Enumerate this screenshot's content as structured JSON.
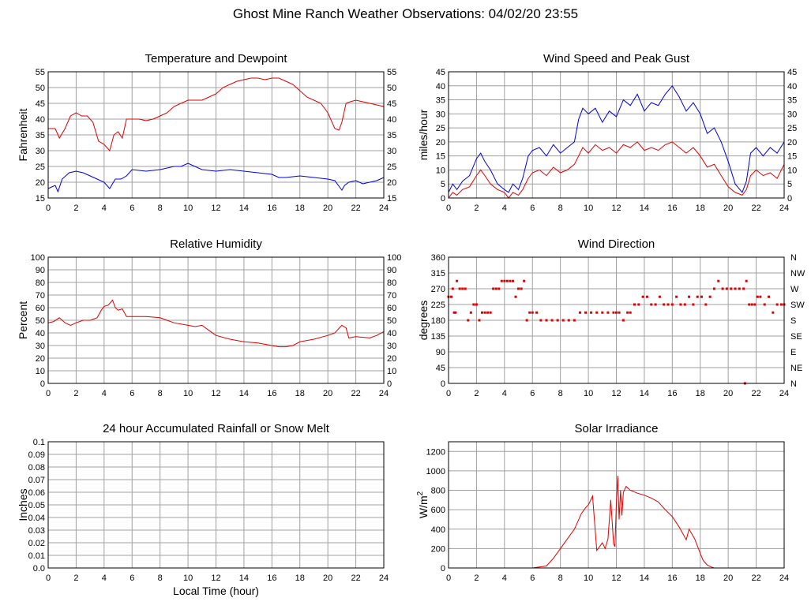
{
  "page": {
    "title": "Ghost Mine Ranch Weather Observations: 04/02/20 23:55"
  },
  "colors": {
    "red": "#e00000",
    "blue": "#0000e0",
    "grid": "#a0a0a0"
  },
  "chart_data": [
    {
      "id": "temp",
      "type": "line",
      "title": "Temperature and Dewpoint",
      "ylabel": "Fahrenheit",
      "xlabel": "",
      "xlim": [
        0,
        24
      ],
      "ylim": [
        15,
        55
      ],
      "yticks": [
        15,
        20,
        25,
        30,
        35,
        40,
        45,
        50,
        55
      ],
      "right_ticks": true,
      "series": [
        {
          "color": "#e00000",
          "x": [
            0,
            0.5,
            0.8,
            1.2,
            1.6,
            2.0,
            2.4,
            2.8,
            3.2,
            3.6,
            4.0,
            4.4,
            4.7,
            5.0,
            5.3,
            5.6,
            6.0,
            6.5,
            7.0,
            7.5,
            8.0,
            8.5,
            9.0,
            9.5,
            10.0,
            10.5,
            11.0,
            11.5,
            12.0,
            12.5,
            13.0,
            13.5,
            14.0,
            14.5,
            15.0,
            15.5,
            16.0,
            16.5,
            17.0,
            17.5,
            18.0,
            18.5,
            19.0,
            19.5,
            20.0,
            20.5,
            20.8,
            21.0,
            21.3,
            21.6,
            22.0,
            22.5,
            23.0,
            23.5,
            24.0
          ],
          "y": [
            37,
            37,
            34,
            37,
            41,
            42,
            41,
            41,
            39,
            33,
            32,
            30,
            35,
            36,
            34,
            40,
            40,
            40,
            39.5,
            40,
            41,
            42,
            44,
            45,
            46,
            46,
            46,
            47,
            48,
            50,
            51,
            52,
            52.5,
            53,
            53,
            52.5,
            53,
            53,
            52,
            51,
            49,
            47,
            46,
            45,
            42,
            37,
            36.5,
            39,
            45,
            45.5,
            46,
            45.5,
            45,
            44.5,
            44
          ]
        },
        {
          "color": "#0000e0",
          "x": [
            0,
            0.5,
            0.7,
            1.0,
            1.5,
            2.0,
            2.5,
            3.0,
            3.5,
            4.0,
            4.4,
            4.8,
            5.2,
            5.6,
            6.0,
            7.0,
            8.0,
            9.0,
            9.5,
            10.0,
            10.5,
            11.0,
            12.0,
            13.0,
            14.0,
            15.0,
            16.0,
            16.5,
            17.0,
            18.0,
            19.0,
            20.0,
            20.5,
            21.0,
            21.2,
            21.5,
            22.0,
            22.5,
            23.0,
            23.5,
            24.0
          ],
          "y": [
            18,
            19,
            17,
            21,
            23,
            23.5,
            23,
            22,
            21,
            20,
            18,
            21,
            21,
            22,
            24,
            23.5,
            24,
            25,
            25,
            26,
            25,
            24,
            23.5,
            24,
            23.5,
            23,
            22.5,
            21.5,
            21.5,
            22,
            21.5,
            21,
            20.5,
            17.5,
            19,
            20,
            20.5,
            19.5,
            20,
            20.5,
            21.5
          ]
        }
      ]
    },
    {
      "id": "wind",
      "type": "line",
      "title": "Wind Speed and Peak Gust",
      "ylabel": "miles/hour",
      "xlabel": "",
      "xlim": [
        0,
        24
      ],
      "ylim": [
        0,
        45
      ],
      "yticks": [
        0,
        5,
        10,
        15,
        20,
        25,
        30,
        35,
        40,
        45
      ],
      "right_ticks": true,
      "series": [
        {
          "color": "#0000e0",
          "x": [
            0,
            0.3,
            0.6,
            1.0,
            1.5,
            2.0,
            2.3,
            2.6,
            3.0,
            3.5,
            4.0,
            4.3,
            4.6,
            5.0,
            5.3,
            5.7,
            6.0,
            6.5,
            7.0,
            7.5,
            8.0,
            8.5,
            9.0,
            9.3,
            9.6,
            10.0,
            10.5,
            11.0,
            11.5,
            12.0,
            12.5,
            13.0,
            13.5,
            14.0,
            14.5,
            15.0,
            15.5,
            16.0,
            16.5,
            17.0,
            17.5,
            18.0,
            18.5,
            19.0,
            19.5,
            20.0,
            20.5,
            21.0,
            21.3,
            21.6,
            22.0,
            22.5,
            23.0,
            23.5,
            24.0
          ],
          "y": [
            2,
            5,
            3,
            6,
            8,
            14,
            16,
            13,
            10,
            5,
            3,
            2,
            5,
            3,
            7,
            15,
            17,
            18,
            15,
            19,
            16,
            18,
            20,
            28,
            32,
            30,
            32,
            27,
            31,
            29,
            35,
            33,
            37,
            31,
            34,
            33,
            37,
            40,
            36,
            31,
            34,
            30,
            23,
            25,
            20,
            13,
            5,
            2,
            6,
            16,
            18,
            15,
            18,
            16,
            20
          ]
        },
        {
          "color": "#e00000",
          "x": [
            0,
            0.3,
            0.6,
            1.0,
            1.5,
            2.0,
            2.3,
            2.6,
            3.0,
            3.5,
            4.0,
            4.3,
            4.6,
            5.0,
            5.3,
            5.7,
            6.0,
            6.5,
            7.0,
            7.5,
            8.0,
            8.5,
            9.0,
            9.3,
            9.6,
            10.0,
            10.5,
            11.0,
            11.5,
            12.0,
            12.5,
            13.0,
            13.5,
            14.0,
            14.5,
            15.0,
            15.5,
            16.0,
            16.5,
            17.0,
            17.5,
            18.0,
            18.5,
            19.0,
            19.5,
            20.0,
            20.5,
            21.0,
            21.3,
            21.6,
            22.0,
            22.5,
            23.0,
            23.5,
            24.0
          ],
          "y": [
            0,
            2,
            1,
            3,
            4,
            8,
            10,
            8,
            5,
            3,
            2,
            0,
            2,
            1,
            3,
            7,
            9,
            10,
            8,
            11,
            9,
            10,
            12,
            15,
            18,
            16,
            19,
            17,
            18,
            16,
            19,
            18,
            20,
            17,
            18,
            17,
            19,
            20,
            18,
            16,
            18,
            15,
            11,
            12,
            8,
            4,
            2,
            1,
            3,
            8,
            10,
            8,
            9,
            7,
            12
          ]
        }
      ]
    },
    {
      "id": "rh",
      "type": "line",
      "title": "Relative Humidity",
      "ylabel": "Percent",
      "xlabel": "",
      "xlim": [
        0,
        24
      ],
      "ylim": [
        0,
        100
      ],
      "yticks": [
        0,
        10,
        20,
        30,
        40,
        50,
        60,
        70,
        80,
        90,
        100
      ],
      "right_ticks": true,
      "series": [
        {
          "color": "#e00000",
          "x": [
            0,
            0.4,
            0.8,
            1.2,
            1.6,
            2.0,
            2.5,
            3.0,
            3.5,
            3.8,
            4.0,
            4.3,
            4.6,
            4.8,
            5.0,
            5.3,
            5.6,
            6.0,
            7.0,
            8.0,
            8.5,
            9.0,
            10.0,
            10.5,
            11.0,
            11.5,
            12.0,
            13.0,
            14.0,
            15.0,
            16.0,
            16.5,
            17.0,
            17.5,
            18.0,
            19.0,
            20.0,
            20.5,
            21.0,
            21.3,
            21.5,
            22.0,
            23.0,
            23.5,
            24.0
          ],
          "y": [
            48,
            49,
            52,
            48,
            46,
            48,
            50,
            50,
            52,
            58,
            61,
            62,
            66,
            60,
            58,
            59,
            53,
            53,
            53,
            52,
            50,
            48,
            46,
            45,
            46,
            42,
            38,
            35,
            33,
            32,
            30,
            29,
            29,
            30,
            33,
            35,
            38,
            40,
            46,
            44,
            36,
            37,
            36,
            38,
            41
          ]
        }
      ]
    },
    {
      "id": "dir",
      "type": "scatter",
      "title": "Wind Direction",
      "ylabel": "degrees",
      "xlabel": "",
      "xlim": [
        0,
        24
      ],
      "ylim": [
        0,
        360
      ],
      "yticks": [
        0,
        45,
        90,
        135,
        180,
        225,
        270,
        315,
        360
      ],
      "right_labels": [
        "N",
        "NE",
        "E",
        "SE",
        "S",
        "SW",
        "W",
        "NW",
        "N"
      ],
      "color": "#e00000",
      "x": [
        0,
        0.2,
        0.3,
        0.4,
        0.5,
        0.6,
        0.8,
        1.0,
        1.2,
        1.4,
        1.6,
        1.8,
        2.0,
        2.2,
        2.4,
        2.6,
        2.8,
        3.0,
        3.2,
        3.4,
        3.6,
        3.8,
        4.0,
        4.2,
        4.4,
        4.6,
        4.8,
        5.0,
        5.2,
        5.4,
        5.6,
        5.8,
        6.0,
        6.3,
        6.6,
        7.0,
        7.4,
        7.8,
        8.2,
        8.6,
        9.0,
        9.4,
        9.8,
        10.2,
        10.6,
        11.0,
        11.4,
        11.8,
        12.0,
        12.2,
        12.5,
        12.8,
        13.0,
        13.3,
        13.6,
        13.9,
        14.2,
        14.5,
        14.8,
        15.1,
        15.4,
        15.7,
        16.0,
        16.3,
        16.6,
        16.9,
        17.2,
        17.5,
        17.8,
        18.1,
        18.4,
        18.7,
        19.0,
        19.3,
        19.6,
        19.9,
        20.2,
        20.5,
        20.8,
        21.1,
        21.3,
        21.5,
        21.7,
        21.9,
        22.1,
        22.3,
        22.6,
        22.9,
        23.2,
        23.5,
        23.8,
        24.0,
        21.2
      ],
      "y": [
        247,
        247,
        270,
        202,
        202,
        292,
        270,
        270,
        270,
        180,
        202,
        225,
        225,
        180,
        202,
        202,
        202,
        202,
        270,
        270,
        270,
        292,
        292,
        292,
        292,
        292,
        247,
        270,
        270,
        292,
        180,
        202,
        202,
        202,
        180,
        180,
        180,
        180,
        180,
        180,
        180,
        202,
        202,
        202,
        202,
        202,
        202,
        202,
        202,
        202,
        180,
        202,
        202,
        225,
        225,
        247,
        247,
        225,
        225,
        247,
        225,
        225,
        225,
        247,
        225,
        225,
        247,
        225,
        247,
        247,
        225,
        247,
        270,
        292,
        270,
        270,
        270,
        270,
        270,
        270,
        292,
        225,
        225,
        225,
        247,
        247,
        225,
        247,
        202,
        225,
        225,
        225,
        0
      ]
    },
    {
      "id": "rain",
      "type": "line",
      "title": "24 hour Accumulated Rainfall or Snow Melt",
      "ylabel": "Inches",
      "xlabel": "Local Time (hour)",
      "xlim": [
        0,
        24
      ],
      "ylim": [
        0,
        0.1
      ],
      "yticks": [
        "0.0",
        "0.01",
        "0.02",
        "0.03",
        "0.04",
        "0.05",
        "0.06",
        "0.07",
        "0.08",
        "0.09",
        "0.1"
      ],
      "right_ticks": false,
      "series": [
        {
          "color": "#e00000",
          "x": [
            0,
            24
          ],
          "y": [
            0,
            0
          ]
        }
      ]
    },
    {
      "id": "solar",
      "type": "line",
      "title": "Solar Irradiance",
      "ylabel": "W/m",
      "ylabel_sup": "2",
      "xlabel": "",
      "xlim": [
        0,
        24
      ],
      "ylim": [
        0,
        1300
      ],
      "yticks": [
        0,
        200,
        400,
        600,
        800,
        1000,
        1200
      ],
      "right_ticks": false,
      "series": [
        {
          "color": "#e00000",
          "x": [
            0,
            6.0,
            7.0,
            7.5,
            8.0,
            8.5,
            9.0,
            9.5,
            9.8,
            10.0,
            10.3,
            10.6,
            10.8,
            11.0,
            11.2,
            11.4,
            11.6,
            11.8,
            11.9,
            12.0,
            12.1,
            12.2,
            12.3,
            12.4,
            12.5,
            12.7,
            13.0,
            13.5,
            14.0,
            14.5,
            15.0,
            15.5,
            16.0,
            16.5,
            17.0,
            17.2,
            17.4,
            17.6,
            18.0,
            18.2,
            18.5,
            18.8,
            19.0,
            19.5,
            24.0
          ],
          "y": [
            0,
            0,
            20,
            100,
            200,
            300,
            400,
            560,
            620,
            650,
            740,
            180,
            220,
            260,
            200,
            300,
            700,
            250,
            220,
            650,
            950,
            500,
            800,
            540,
            780,
            840,
            800,
            770,
            750,
            720,
            680,
            600,
            530,
            420,
            290,
            400,
            350,
            300,
            150,
            80,
            30,
            10,
            0,
            0,
            0
          ]
        }
      ]
    }
  ]
}
